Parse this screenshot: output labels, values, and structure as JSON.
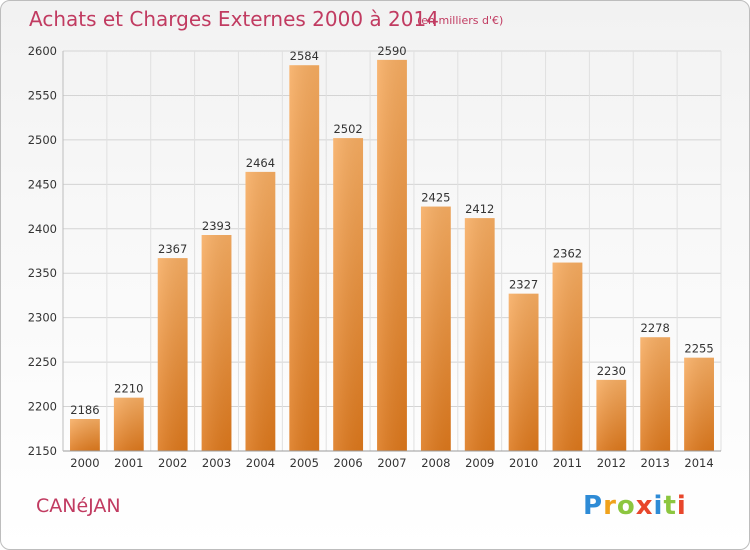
{
  "header": {
    "title": "Achats et Charges Externes 2000 à 2014",
    "subtitle": "(en milliers d'€)"
  },
  "footer": {
    "commune": "CANéJAN",
    "logo": [
      "P",
      "r",
      "o",
      "x",
      "i",
      "t",
      "i"
    ]
  },
  "colors": {
    "title": "#c13b61",
    "bar_top": "#f6a85a",
    "bar_bottom": "#de7a1f",
    "grid": "#d2d2d2"
  },
  "chart_data": {
    "type": "bar",
    "title": "Achats et Charges Externes 2000 à 2014",
    "subtitle": "(en milliers d'€)",
    "xlabel": "",
    "ylabel": "",
    "categories": [
      "2000",
      "2001",
      "2002",
      "2003",
      "2004",
      "2005",
      "2006",
      "2007",
      "2008",
      "2009",
      "2010",
      "2011",
      "2012",
      "2013",
      "2014"
    ],
    "values": [
      2186,
      2210,
      2367,
      2393,
      2464,
      2584,
      2502,
      2590,
      2425,
      2412,
      2327,
      2362,
      2230,
      2278,
      2255
    ],
    "ylim": [
      2150,
      2600
    ],
    "yticks": [
      2150,
      2200,
      2250,
      2300,
      2350,
      2400,
      2450,
      2500,
      2550,
      2600
    ],
    "grid": true,
    "data_labels": true
  }
}
